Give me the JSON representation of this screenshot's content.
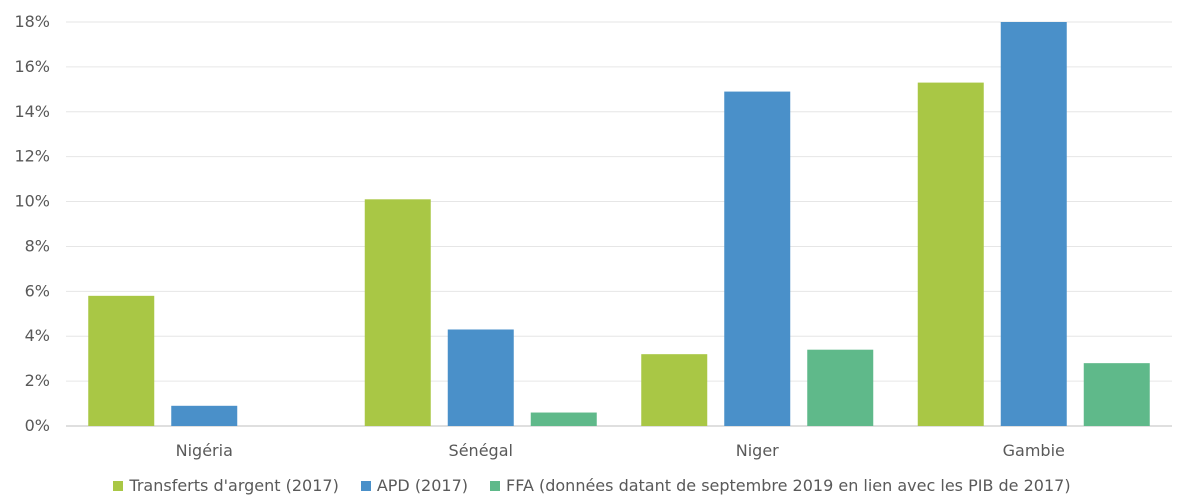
{
  "chart_data": {
    "type": "bar",
    "categories": [
      "Nigéria",
      "Sénégal",
      "Niger",
      "Gambie"
    ],
    "series": [
      {
        "name": "Transferts d'argent (2017)",
        "values": [
          5.8,
          10.1,
          3.2,
          15.3
        ],
        "color": "#a9c745"
      },
      {
        "name": "APD (2017)",
        "values": [
          0.9,
          4.3,
          14.9,
          18.0
        ],
        "color": "#4a90c9"
      },
      {
        "name": "FFA (données datant de septembre 2019 en lien avec les PIB de 2017)",
        "values": [
          0.0,
          0.6,
          3.4,
          2.8
        ],
        "color": "#5fb98a"
      }
    ],
    "ylim": [
      0,
      18
    ],
    "yticks": [
      "0%",
      "2%",
      "4%",
      "6%",
      "8%",
      "10%",
      "12%",
      "14%",
      "16%",
      "18%"
    ],
    "ytick_values": [
      0,
      2,
      4,
      6,
      8,
      10,
      12,
      14,
      16,
      18
    ],
    "grid": true,
    "legend_position": "bottom",
    "title": "",
    "xlabel": "",
    "ylabel": ""
  }
}
